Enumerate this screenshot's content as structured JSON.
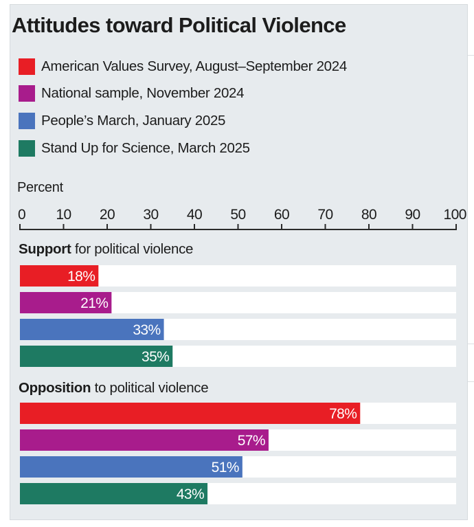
{
  "chart_data": {
    "type": "bar",
    "orientation": "horizontal",
    "title": "Attitudes toward Political Violence",
    "xlabel": "Percent",
    "ylabel": "",
    "xlim": [
      0,
      100
    ],
    "x_ticks": [
      0,
      10,
      20,
      30,
      40,
      50,
      60,
      70,
      80,
      90,
      100
    ],
    "grid": false,
    "legend_position": "top-left",
    "series": [
      {
        "name": "American Values Survey, August–September 2024",
        "color": "#e81e25"
      },
      {
        "name": "National sample, November 2024",
        "color": "#a81c8c"
      },
      {
        "name": "People’s March, January 2025",
        "color": "#4a74bd"
      },
      {
        "name": "Stand Up for Science, March 2025",
        "color": "#1e7a62"
      }
    ],
    "groups": [
      {
        "title_bold": "Support",
        "title_rest": " for political violence",
        "values": [
          18,
          21,
          33,
          35
        ],
        "labels": [
          "18%",
          "21%",
          "33%",
          "35%"
        ]
      },
      {
        "title_bold": "Opposition",
        "title_rest": " to political violence",
        "values": [
          78,
          57,
          51,
          43
        ],
        "labels": [
          "78%",
          "57%",
          "51%",
          "43%"
        ]
      }
    ]
  }
}
